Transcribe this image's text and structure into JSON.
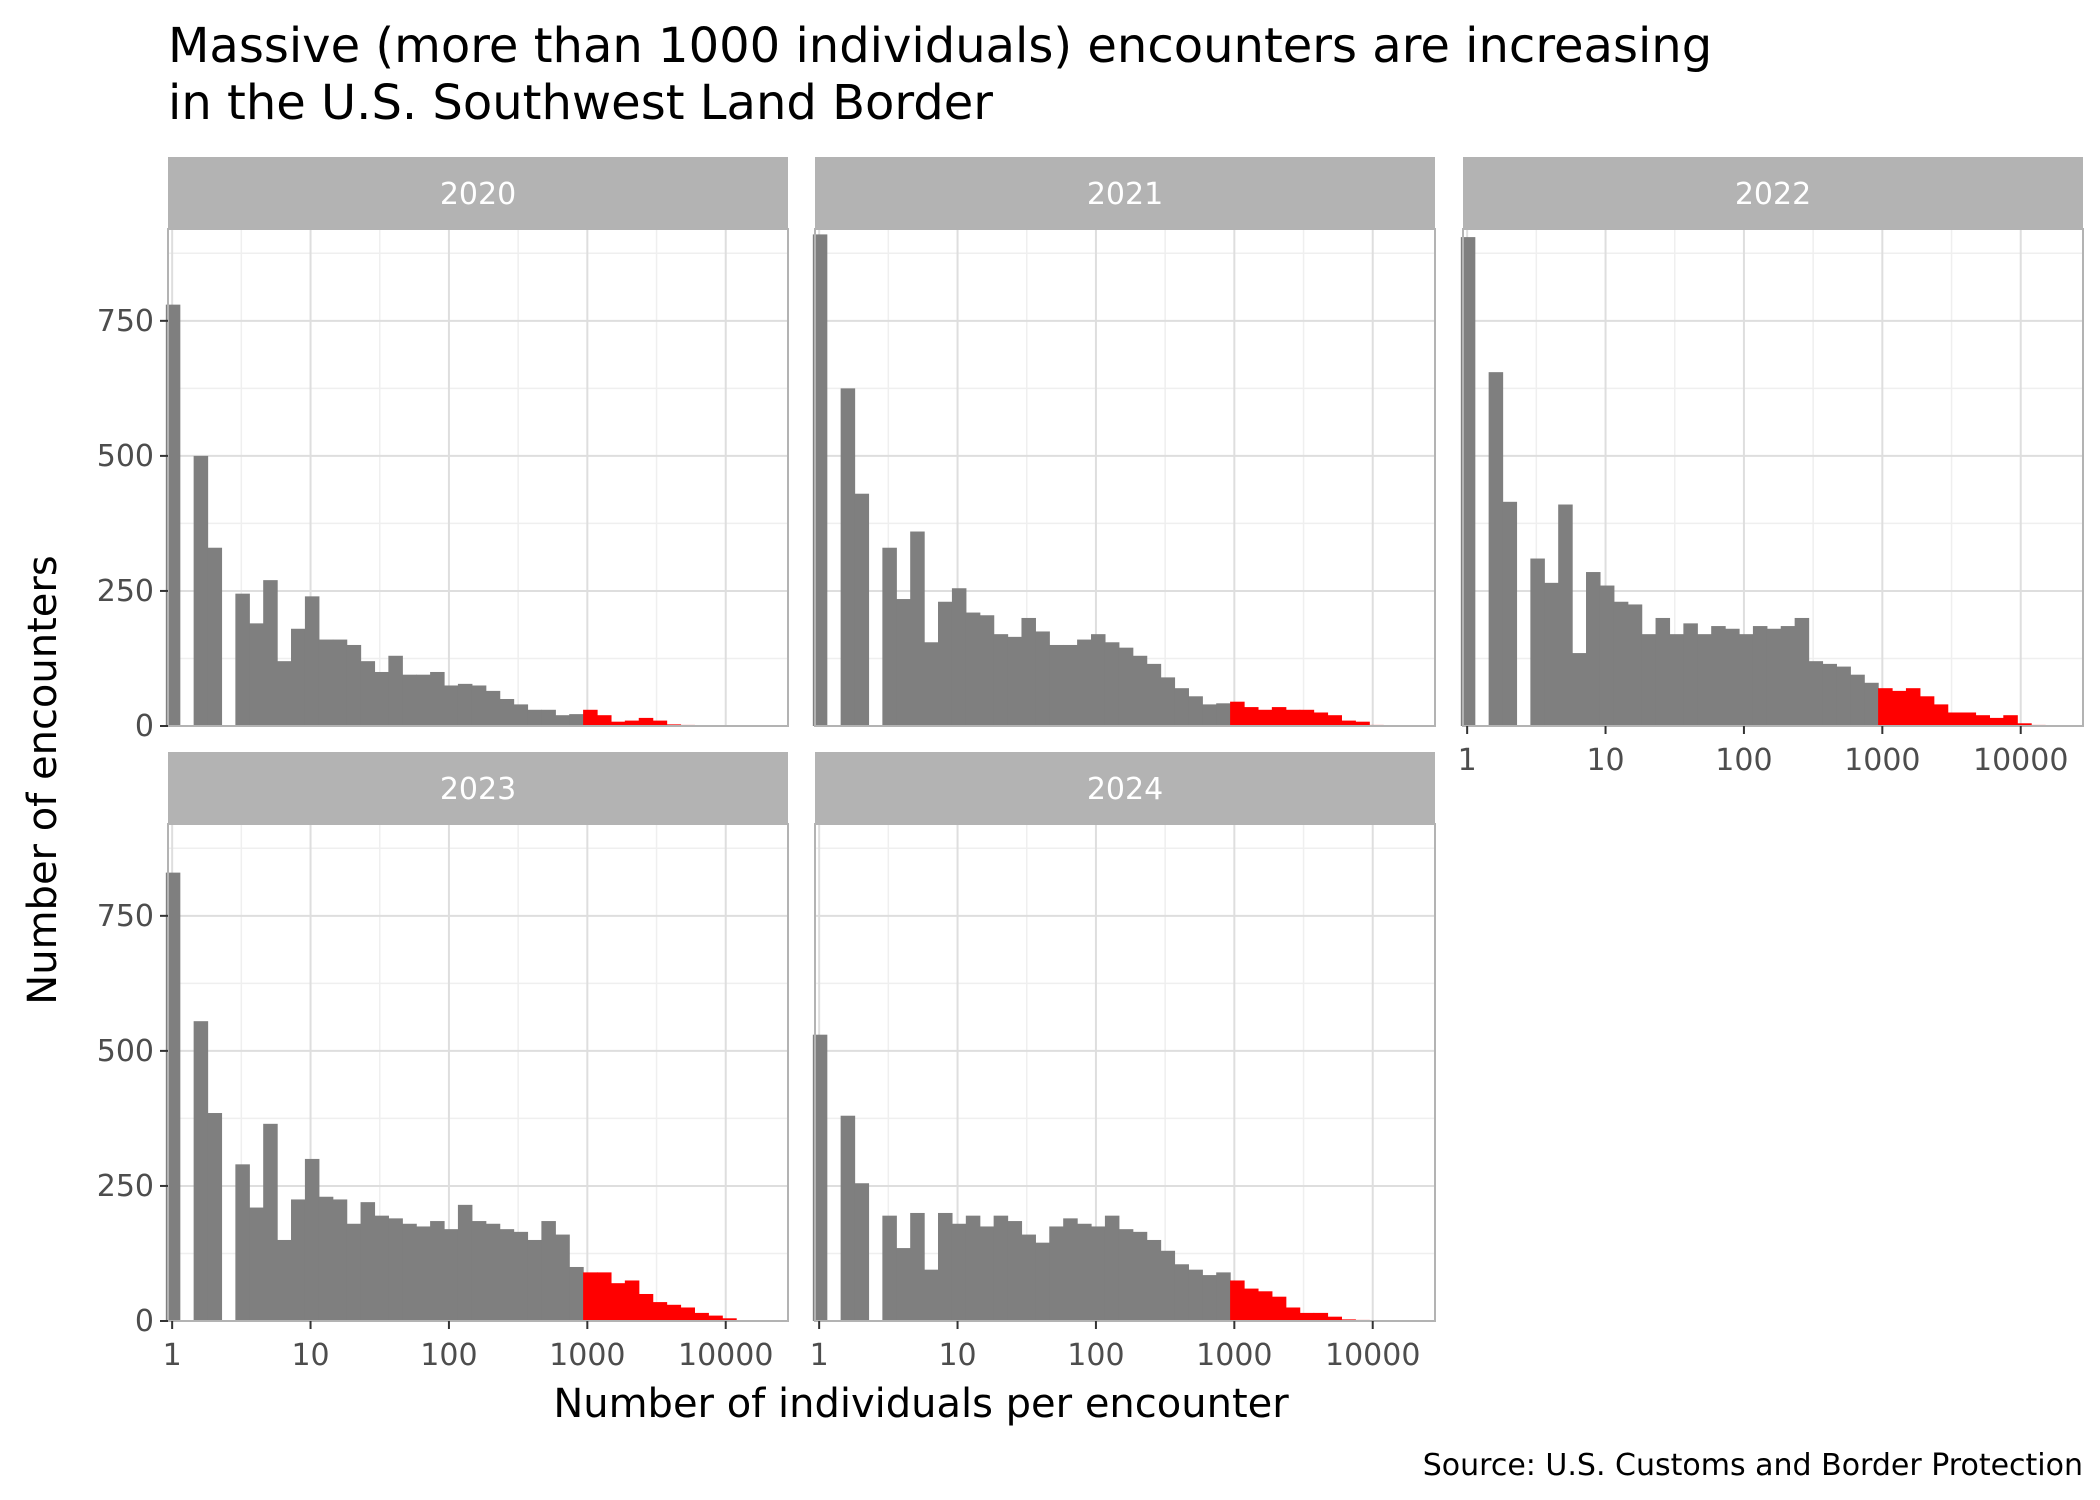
{
  "chart_data": {
    "type": "bar",
    "title_lines": [
      "Massive (more than 1000 individuals) encounters are increasing",
      "in the U.S. Southwest Land Border"
    ],
    "xlabel": "Number of individuals per encounter",
    "ylabel": "Number of encounters",
    "caption": "Source: U.S. Customs and Border Protection",
    "x_scale": "log10",
    "x_ticks": [
      1,
      10,
      100,
      1000,
      10000
    ],
    "x_tick_labels": [
      "1",
      "10",
      "100",
      "1000",
      "10000"
    ],
    "y_ticks": [
      0,
      250,
      500,
      750
    ],
    "y_tick_labels": [
      "0",
      "250",
      "500",
      "750"
    ],
    "ylim": [
      0,
      920
    ],
    "grid": true,
    "colors": {
      "below_1000": "#7f7f7f",
      "above_1000": "#ff0000",
      "strip": "#b3b3b3",
      "grid": "#dedede"
    },
    "bin_start": 0.9,
    "bin_end": 30000,
    "threshold": 1000,
    "panels": [
      {
        "year": "2020",
        "counts": [
          780,
          0,
          500,
          330,
          0,
          245,
          190,
          270,
          120,
          180,
          240,
          160,
          160,
          150,
          120,
          100,
          130,
          95,
          95,
          100,
          75,
          78,
          75,
          65,
          50,
          40,
          30,
          30,
          20,
          22,
          30,
          20,
          8,
          10,
          15,
          10,
          3,
          2,
          1,
          0,
          0,
          0,
          0,
          0,
          0
        ]
      },
      {
        "year": "2021",
        "counts": [
          910,
          0,
          625,
          430,
          0,
          330,
          235,
          360,
          155,
          230,
          255,
          210,
          205,
          170,
          165,
          200,
          175,
          150,
          150,
          160,
          170,
          155,
          145,
          130,
          115,
          90,
          70,
          55,
          40,
          42,
          45,
          35,
          30,
          35,
          30,
          30,
          25,
          20,
          10,
          8,
          2,
          0,
          0,
          0,
          0
        ]
      },
      {
        "year": "2022",
        "counts": [
          905,
          0,
          655,
          415,
          0,
          310,
          265,
          410,
          135,
          285,
          260,
          230,
          225,
          170,
          200,
          170,
          190,
          170,
          185,
          180,
          170,
          185,
          180,
          185,
          200,
          120,
          115,
          110,
          95,
          80,
          70,
          65,
          70,
          55,
          40,
          25,
          25,
          20,
          15,
          20,
          5,
          2,
          0,
          0,
          0
        ]
      },
      {
        "year": "2023",
        "counts": [
          830,
          0,
          555,
          385,
          0,
          290,
          210,
          365,
          150,
          225,
          300,
          230,
          225,
          180,
          220,
          195,
          190,
          180,
          175,
          185,
          170,
          215,
          185,
          180,
          170,
          165,
          150,
          185,
          160,
          100,
          90,
          90,
          70,
          75,
          50,
          35,
          30,
          25,
          15,
          10,
          5,
          0,
          0,
          0,
          0
        ]
      },
      {
        "year": "2024",
        "counts": [
          530,
          0,
          380,
          255,
          0,
          195,
          135,
          200,
          95,
          200,
          180,
          195,
          175,
          195,
          185,
          160,
          145,
          175,
          190,
          180,
          175,
          195,
          170,
          165,
          150,
          130,
          105,
          95,
          85,
          90,
          75,
          60,
          55,
          45,
          25,
          15,
          15,
          8,
          3,
          2,
          0,
          0,
          0,
          0,
          0
        ]
      }
    ]
  }
}
